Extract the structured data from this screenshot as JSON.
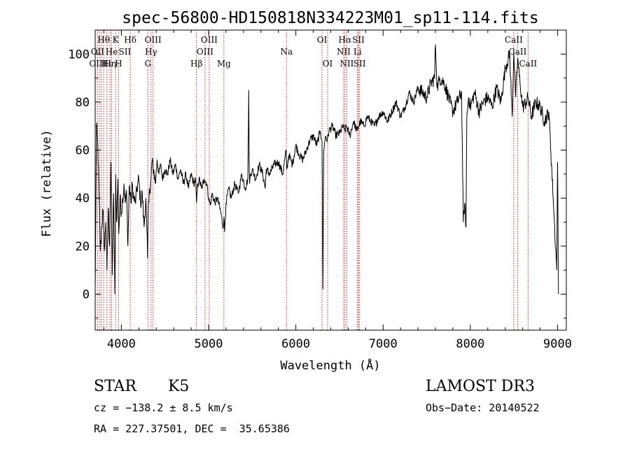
{
  "chart_data": {
    "type": "line",
    "title": "spec-56800-HD150818N334223M01_sp11-114.fits",
    "xlabel": "Wavelength (Å)",
    "ylabel": "Flux (relative)",
    "xlim": [
      3700,
      9100
    ],
    "ylim": [
      -15,
      110
    ],
    "xticks": [
      4000,
      5000,
      6000,
      7000,
      8000,
      9000
    ],
    "yticks": [
      0,
      20,
      40,
      60,
      80,
      100
    ],
    "series": [
      {
        "name": "spectrum",
        "x": [
          3700,
          3715,
          3730,
          3745,
          3760,
          3775,
          3790,
          3805,
          3820,
          3835,
          3850,
          3865,
          3880,
          3895,
          3910,
          3925,
          3935,
          3945,
          3960,
          3970,
          3985,
          4000,
          4015,
          4030,
          4045,
          4060,
          4075,
          4090,
          4100,
          4110,
          4125,
          4140,
          4160,
          4180,
          4200,
          4220,
          4240,
          4260,
          4280,
          4300,
          4310,
          4320,
          4330,
          4340,
          4350,
          4370,
          4390,
          4410,
          4430,
          4450,
          4470,
          4500,
          4530,
          4560,
          4590,
          4620,
          4650,
          4680,
          4710,
          4740,
          4770,
          4800,
          4830,
          4850,
          4861,
          4870,
          4890,
          4920,
          4950,
          4980,
          5000,
          5020,
          5040,
          5070,
          5100,
          5140,
          5167,
          5175,
          5183,
          5200,
          5230,
          5260,
          5300,
          5340,
          5380,
          5420,
          5450,
          5460,
          5465,
          5470,
          5480,
          5500,
          5540,
          5580,
          5620,
          5650,
          5660,
          5700,
          5750,
          5800,
          5850,
          5890,
          5896,
          5920,
          5960,
          6000,
          6040,
          6080,
          6120,
          6160,
          6200,
          6240,
          6280,
          6300,
          6310,
          6320,
          6340,
          6360,
          6380,
          6420,
          6460,
          6500,
          6540,
          6563,
          6580,
          6620,
          6660,
          6700,
          6740,
          6780,
          6820,
          6860,
          6900,
          6950,
          7000,
          7050,
          7100,
          7150,
          7200,
          7250,
          7300,
          7350,
          7400,
          7450,
          7500,
          7550,
          7590,
          7600,
          7620,
          7650,
          7700,
          7750,
          7800,
          7850,
          7900,
          7920,
          7935,
          7950,
          7960,
          7980,
          8000,
          8050,
          8100,
          8150,
          8200,
          8250,
          8300,
          8350,
          8400,
          8450,
          8480,
          8498,
          8520,
          8542,
          8570,
          8600,
          8640,
          8662,
          8700,
          8750,
          8800,
          8850,
          8900,
          8950,
          8990,
          9000,
          9010
        ],
        "values": [
          2,
          70,
          62,
          40,
          18,
          28,
          35,
          18,
          30,
          10,
          36,
          20,
          55,
          8,
          42,
          0,
          50,
          30,
          48,
          25,
          40,
          34,
          40,
          46,
          38,
          42,
          20,
          45,
          42,
          38,
          46,
          40,
          38,
          44,
          48,
          38,
          42,
          28,
          40,
          15,
          38,
          44,
          42,
          48,
          55,
          52,
          46,
          56,
          50,
          54,
          48,
          52,
          50,
          56,
          50,
          54,
          48,
          52,
          46,
          50,
          44,
          50,
          46,
          48,
          38,
          44,
          48,
          44,
          48,
          46,
          40,
          37,
          42,
          38,
          40,
          34,
          28,
          32,
          26,
          38,
          44,
          40,
          46,
          42,
          50,
          44,
          48,
          85,
          55,
          46,
          50,
          52,
          48,
          54,
          50,
          44,
          52,
          50,
          54,
          55,
          50,
          60,
          52,
          58,
          54,
          62,
          58,
          56,
          60,
          64,
          66,
          62,
          68,
          64,
          2,
          60,
          66,
          64,
          68,
          70,
          66,
          67,
          70,
          68,
          70,
          66,
          72,
          68,
          72,
          70,
          74,
          72,
          70,
          74,
          76,
          72,
          76,
          80,
          74,
          78,
          84,
          80,
          86,
          84,
          82,
          88,
          90,
          104,
          86,
          90,
          88,
          82,
          76,
          80,
          84,
          30,
          38,
          28,
          74,
          82,
          78,
          84,
          76,
          80,
          82,
          78,
          86,
          80,
          94,
          100,
          74,
          102,
          82,
          98,
          88,
          78,
          80,
          82,
          74,
          80,
          78,
          72,
          76,
          40,
          10,
          55,
          0
        ]
      }
    ],
    "line_labels": [
      {
        "text": "OIII",
        "x": 3727,
        "row": 3
      },
      {
        "text": "Hθ",
        "x": 3797,
        "row": 1
      },
      {
        "text": "OII",
        "x": 3727,
        "row": 2
      },
      {
        "text": "Hε",
        "x": 3835,
        "row": 3
      },
      {
        "text": "He",
        "x": 3889,
        "row": 2
      },
      {
        "text": "Hη",
        "x": 3870,
        "row": 3
      },
      {
        "text": "K",
        "x": 3934,
        "row": 1
      },
      {
        "text": "H",
        "x": 3969,
        "row": 3
      },
      {
        "text": "SII",
        "x": 4040,
        "row": 2
      },
      {
        "text": "Hδ",
        "x": 4102,
        "row": 1
      },
      {
        "text": "OIII",
        "x": 4363,
        "row": 1
      },
      {
        "text": "Hγ",
        "x": 4340,
        "row": 2
      },
      {
        "text": "G",
        "x": 4304,
        "row": 3
      },
      {
        "text": "Hβ",
        "x": 4861,
        "row": 3
      },
      {
        "text": "OIII",
        "x": 5007,
        "row": 1
      },
      {
        "text": "OIII",
        "x": 4959,
        "row": 2
      },
      {
        "text": "Mg",
        "x": 5175,
        "row": 3
      },
      {
        "text": "Na",
        "x": 5893,
        "row": 2
      },
      {
        "text": "OI",
        "x": 6300,
        "row": 1
      },
      {
        "text": "OI",
        "x": 6364,
        "row": 3
      },
      {
        "text": "Hα",
        "x": 6563,
        "row": 1
      },
      {
        "text": "NII",
        "x": 6548,
        "row": 2
      },
      {
        "text": "NII",
        "x": 6584,
        "row": 3
      },
      {
        "text": "SII",
        "x": 6717,
        "row": 1
      },
      {
        "text": "Li",
        "x": 6707,
        "row": 2
      },
      {
        "text": "SII",
        "x": 6731,
        "row": 3
      },
      {
        "text": "CaII",
        "x": 8498,
        "row": 1
      },
      {
        "text": "CaII",
        "x": 8542,
        "row": 2
      },
      {
        "text": "CaII",
        "x": 8662,
        "row": 3
      }
    ],
    "line_positions": [
      3727,
      3750,
      3771,
      3797,
      3835,
      3870,
      3889,
      3934,
      3969,
      4102,
      4304,
      4340,
      4363,
      4861,
      4959,
      5007,
      5175,
      5893,
      6300,
      6364,
      6548,
      6563,
      6584,
      6707,
      6717,
      6731,
      8498,
      8542,
      8662
    ],
    "marker_color": "#cc2222"
  },
  "info": {
    "object_class": "STAR",
    "subclass": "K5",
    "survey": "LAMOST DR3",
    "cz": "cz = −138.2 ± 8.5 km/s",
    "obs_date": "Obs−Date: 20140522",
    "coords": "RA = 227.37501, DEC =  35.65386"
  }
}
